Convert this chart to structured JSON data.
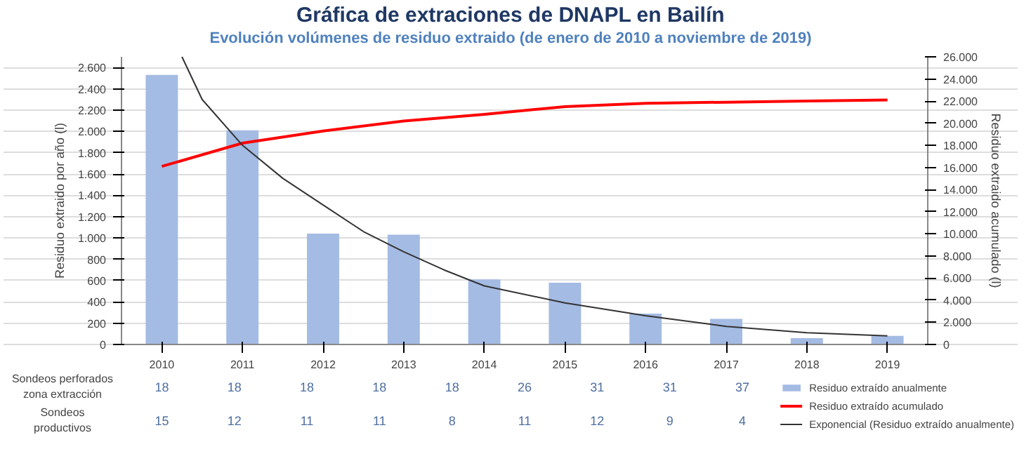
{
  "chart_data": {
    "type": "bar",
    "title": "Gráfica de extraciones de DNAPL en Bailín",
    "subtitle": "Evolución volúmenes de residuo extraido (de enero de 2010 a noviembre de 2019)",
    "ylabel": "Residuo extraido por año (l)",
    "y2label": "Residuo extraido acumulado (l)",
    "x": [
      2010,
      2011,
      2012,
      2013,
      2014,
      2015,
      2016,
      2017,
      2018,
      2019
    ],
    "xlim": [
      2009.5,
      2019.5
    ],
    "xticks": [
      2010,
      2011,
      2012,
      2013,
      2014,
      2015,
      2016,
      2017,
      2018,
      2019
    ],
    "ylim": [
      0,
      2700
    ],
    "yticks": [
      {
        "value": 0,
        "label": "0"
      },
      {
        "value": 200,
        "label": "200"
      },
      {
        "value": 400,
        "label": "400"
      },
      {
        "value": 600,
        "label": "600"
      },
      {
        "value": 800,
        "label": "800"
      },
      {
        "value": 1000,
        "label": "1.000"
      },
      {
        "value": 1200,
        "label": "1.200"
      },
      {
        "value": 1400,
        "label": "1.400"
      },
      {
        "value": 1600,
        "label": "1.600"
      },
      {
        "value": 1800,
        "label": "1.800"
      },
      {
        "value": 2000,
        "label": "2.000"
      },
      {
        "value": 2200,
        "label": "2.200"
      },
      {
        "value": 2400,
        "label": "2.400"
      },
      {
        "value": 2600,
        "label": "2.600"
      }
    ],
    "y2lim": [
      0,
      26000
    ],
    "y2ticks": [
      {
        "value": 0,
        "label": "0"
      },
      {
        "value": 2000,
        "label": "2.000"
      },
      {
        "value": 4000,
        "label": "4.000"
      },
      {
        "value": 6000,
        "label": "6.000"
      },
      {
        "value": 8000,
        "label": "8.000"
      },
      {
        "value": 10000,
        "label": "10.000"
      },
      {
        "value": 12000,
        "label": "12.000"
      },
      {
        "value": 14000,
        "label": "14.000"
      },
      {
        "value": 16000,
        "label": "16.000"
      },
      {
        "value": 18000,
        "label": "18.000"
      },
      {
        "value": 20000,
        "label": "20.000"
      },
      {
        "value": 22000,
        "label": "22.000"
      },
      {
        "value": 24000,
        "label": "24.000"
      },
      {
        "value": 26000,
        "label": "26.000"
      }
    ],
    "grid": "y",
    "legend": "bottom right",
    "series": [
      {
        "name": "Residuo extraído anualmente",
        "color": "#a4bbe3",
        "values": [
          2530,
          2010,
          1040,
          1030,
          610,
          580,
          290,
          240,
          60,
          80
        ]
      },
      {
        "name": "Residuo extraído acumulado",
        "type": "line",
        "axis": "y2",
        "color": "#ff0000",
        "values": [
          16100,
          18200,
          19300,
          20200,
          20800,
          21500,
          21800,
          21900,
          22000,
          22100
        ]
      },
      {
        "name": "Exponencial (Residuo extraído anualmente)",
        "type": "line",
        "color": "#333333",
        "x": [
          2010.25,
          2010.5,
          2011,
          2011.5,
          2012,
          2012.5,
          2013,
          2013.5,
          2014,
          2015,
          2016,
          2017,
          2018,
          2019
        ],
        "values": [
          2700,
          2300,
          1870,
          1560,
          1310,
          1060,
          870,
          700,
          550,
          390,
          270,
          170,
          110,
          80
        ]
      }
    ],
    "annotations": [
      "Sondeos perforados zona extracción",
      "18",
      "18",
      "18",
      "18",
      "18",
      "26",
      "31",
      "31",
      "37",
      "Sondeos productivos",
      "15",
      "12",
      "11",
      "11",
      "8",
      "11",
      "12",
      "9",
      "4"
    ]
  }
}
